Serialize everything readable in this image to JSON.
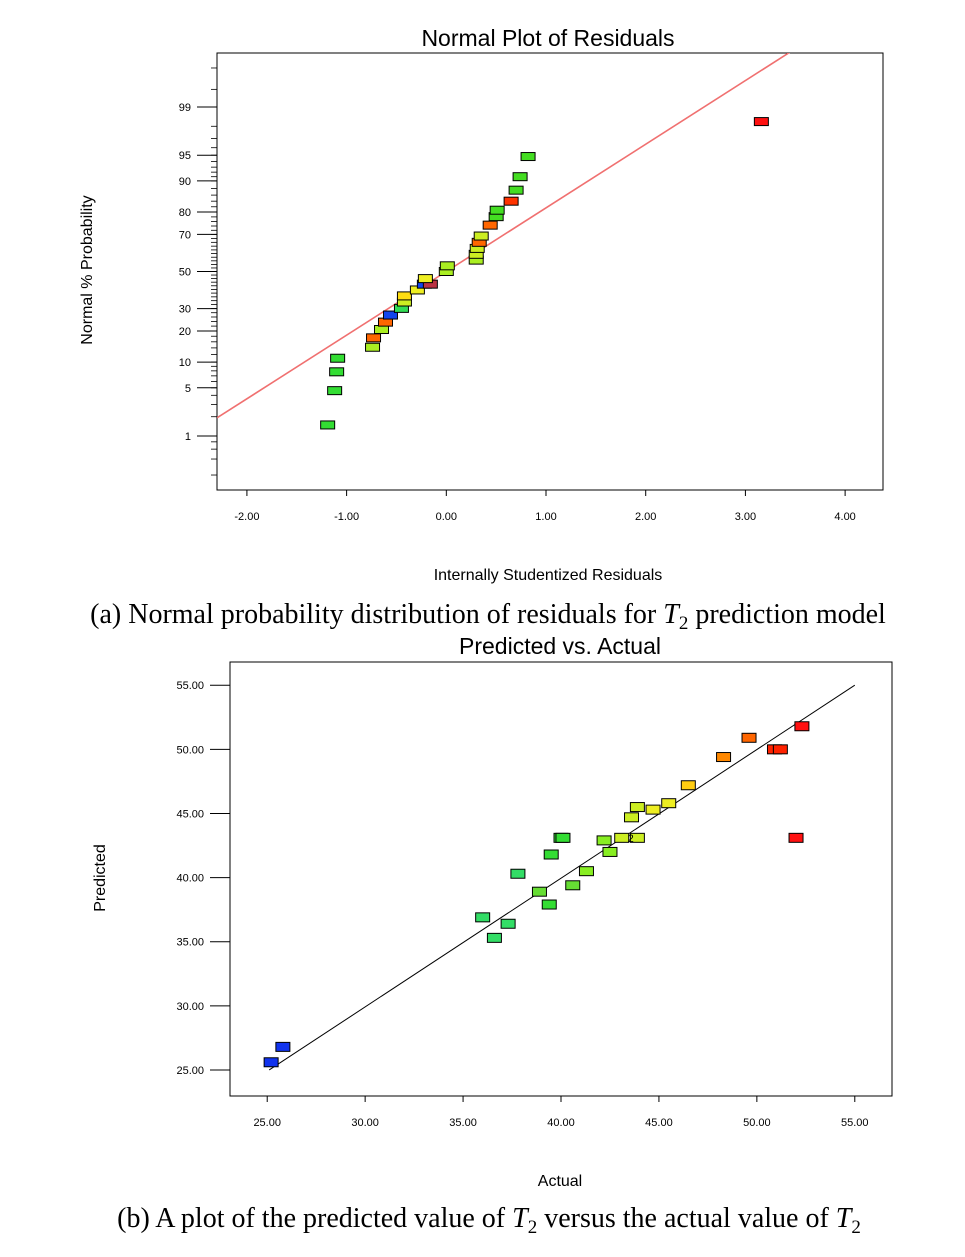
{
  "chart_data": [
    {
      "type": "scatter",
      "title": "Normal Plot of Residuals",
      "xlabel": "Internally Studentized Residuals",
      "ylabel": "Normal % Probability",
      "xlim": [
        -2.3,
        4.38
      ],
      "x_ticks": [
        "-2.00",
        "-1.00",
        "0.00",
        "1.00",
        "2.00",
        "3.00",
        "4.00"
      ],
      "x_tick_values": [
        -2,
        -1,
        0,
        1,
        2,
        3,
        4
      ],
      "y_scale": "normal-probability",
      "y_ticks": [
        "99",
        "95",
        "90",
        "80",
        "70",
        "50",
        "30",
        "20",
        "10",
        "5",
        "1"
      ],
      "y_tick_values": [
        99,
        95,
        90,
        80,
        70,
        50,
        30,
        20,
        10,
        5,
        1
      ],
      "grid": false,
      "reference_line": {
        "color": "#f07070"
      },
      "points": [
        {
          "x": -1.19,
          "y": 1.5,
          "color": "#33dd33"
        },
        {
          "x": -1.12,
          "y": 4.6,
          "color": "#33dd33"
        },
        {
          "x": -1.1,
          "y": 7.8,
          "color": "#33dd33"
        },
        {
          "x": -1.09,
          "y": 11.0,
          "color": "#33dd33"
        },
        {
          "x": -0.74,
          "y": 14.2,
          "color": "#aaee22"
        },
        {
          "x": -0.73,
          "y": 17.4,
          "color": "#ff6600"
        },
        {
          "x": -0.65,
          "y": 20.6,
          "color": "#aaee22"
        },
        {
          "x": -0.61,
          "y": 23.7,
          "color": "#ff6600"
        },
        {
          "x": -0.56,
          "y": 26.9,
          "color": "#1144ee"
        },
        {
          "x": -0.45,
          "y": 30.1,
          "color": "#33dd55"
        },
        {
          "x": -0.42,
          "y": 33.3,
          "color": "#ccee22"
        },
        {
          "x": -0.42,
          "y": 36.5,
          "color": "#ffdd11"
        },
        {
          "x": -0.29,
          "y": 39.7,
          "color": "#eeee22"
        },
        {
          "x": -0.22,
          "y": 42.9,
          "color": "#1144ee"
        },
        {
          "x": -0.16,
          "y": 42.9,
          "color": "#bb3344"
        },
        {
          "x": -0.21,
          "y": 46.0,
          "color": "#eeee22"
        },
        {
          "x": 0.0,
          "y": 50.0,
          "color": "#aaee22"
        },
        {
          "x": 0.01,
          "y": 53.2,
          "color": "#aaee22"
        },
        {
          "x": 0.3,
          "y": 56.4,
          "color": "#aaee22"
        },
        {
          "x": 0.3,
          "y": 59.6,
          "color": "#ccee22"
        },
        {
          "x": 0.31,
          "y": 62.8,
          "color": "#ccee22"
        },
        {
          "x": 0.33,
          "y": 66.0,
          "color": "#ff6600"
        },
        {
          "x": 0.35,
          "y": 69.2,
          "color": "#ccee22"
        },
        {
          "x": 0.44,
          "y": 74.4,
          "color": "#ff6600"
        },
        {
          "x": 0.5,
          "y": 78.1,
          "color": "#44dd22"
        },
        {
          "x": 0.51,
          "y": 80.7,
          "color": "#44dd22"
        },
        {
          "x": 0.65,
          "y": 84.0,
          "color": "#ff3300"
        },
        {
          "x": 0.7,
          "y": 87.5,
          "color": "#44dd22"
        },
        {
          "x": 0.74,
          "y": 91.0,
          "color": "#44dd22"
        },
        {
          "x": 0.82,
          "y": 94.8,
          "color": "#44dd22"
        },
        {
          "x": 3.16,
          "y": 98.3,
          "color": "#ff1111"
        }
      ]
    },
    {
      "type": "scatter",
      "title": "Predicted vs. Actual",
      "xlabel": "Actual",
      "ylabel": "Predicted",
      "xlim": [
        23.1,
        56.9
      ],
      "ylim": [
        22.97,
        56.81
      ],
      "x_ticks": [
        "25.00",
        "30.00",
        "35.00",
        "40.00",
        "45.00",
        "50.00",
        "55.00"
      ],
      "x_tick_values": [
        25,
        30,
        35,
        40,
        45,
        50,
        55
      ],
      "y_ticks": [
        "25.00",
        "30.00",
        "35.00",
        "40.00",
        "45.00",
        "50.00",
        "55.00"
      ],
      "y_tick_values": [
        25,
        30,
        35,
        40,
        45,
        50,
        55
      ],
      "grid": false,
      "reference_line": {
        "color": "#000000"
      },
      "point_label": "2",
      "points": [
        {
          "x": 25.2,
          "y": 25.6,
          "color": "#1133ee"
        },
        {
          "x": 25.8,
          "y": 26.8,
          "color": "#1133ee"
        },
        {
          "x": 36.0,
          "y": 36.9,
          "color": "#33dd66"
        },
        {
          "x": 36.6,
          "y": 35.3,
          "color": "#33dd66"
        },
        {
          "x": 37.3,
          "y": 36.4,
          "color": "#33dd66"
        },
        {
          "x": 37.8,
          "y": 40.3,
          "color": "#33dd66"
        },
        {
          "x": 38.9,
          "y": 38.9,
          "color": "#66dd33"
        },
        {
          "x": 39.4,
          "y": 37.9,
          "color": "#33dd33"
        },
        {
          "x": 39.5,
          "y": 41.8,
          "color": "#33dd33"
        },
        {
          "x": 40.0,
          "y": 43.1,
          "color": "#33dd33"
        },
        {
          "x": 40.1,
          "y": 43.1,
          "color": "#33dd33"
        },
        {
          "x": 40.6,
          "y": 39.4,
          "color": "#66dd33"
        },
        {
          "x": 41.3,
          "y": 40.5,
          "color": "#88ee22"
        },
        {
          "x": 42.2,
          "y": 42.9,
          "color": "#88ee22"
        },
        {
          "x": 42.5,
          "y": 42.0,
          "color": "#88ee22"
        },
        {
          "x": 43.1,
          "y": 43.1,
          "color": "#ccee22"
        },
        {
          "x": 43.6,
          "y": 44.7,
          "color": "#ccee22"
        },
        {
          "x": 43.9,
          "y": 45.5,
          "color": "#ccee22"
        },
        {
          "x": 43.9,
          "y": 43.1,
          "color": "#ccee22"
        },
        {
          "x": 44.7,
          "y": 45.3,
          "color": "#eeee22"
        },
        {
          "x": 45.5,
          "y": 45.8,
          "color": "#eeee22"
        },
        {
          "x": 46.5,
          "y": 47.2,
          "color": "#ffcc11"
        },
        {
          "x": 48.3,
          "y": 49.4,
          "color": "#ff8800"
        },
        {
          "x": 49.6,
          "y": 50.9,
          "color": "#ff6600"
        },
        {
          "x": 50.9,
          "y": 50.0,
          "color": "#ff2200"
        },
        {
          "x": 51.2,
          "y": 50.0,
          "color": "#ff2200"
        },
        {
          "x": 52.0,
          "y": 43.1,
          "color": "#ff1111"
        },
        {
          "x": 52.3,
          "y": 51.8,
          "color": "#ff1111"
        }
      ]
    }
  ],
  "captions": {
    "a_text": "(a) Normal probability distribution of residuals for ",
    "a_var": "T",
    "a_sub": "2",
    "a_tail": " prediction model",
    "b_text": "(b) A plot of the predicted value of ",
    "b_var": "T",
    "b_sub": "2",
    "b_mid": " versus the actual value of ",
    "b_var2": "T",
    "b_sub2": "2"
  }
}
